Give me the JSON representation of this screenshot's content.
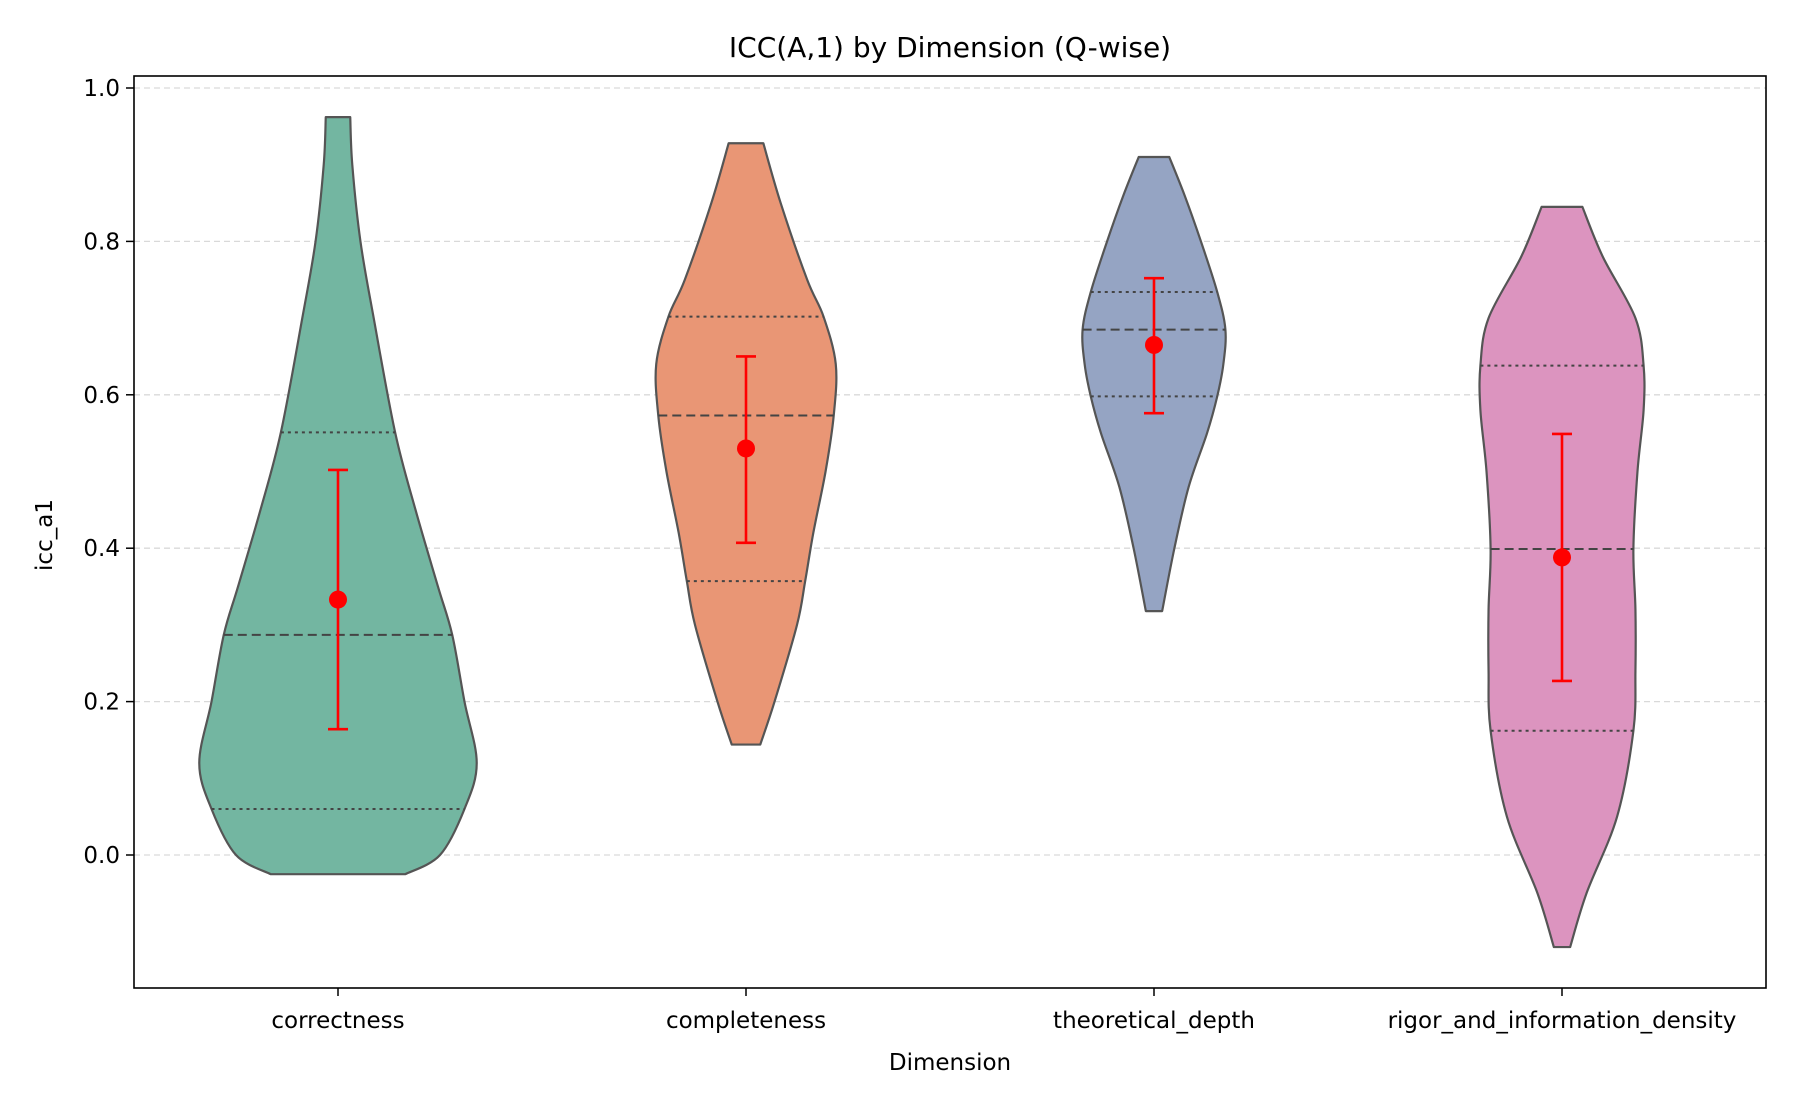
{
  "chart_data": {
    "type": "violin",
    "title": "ICC(A,1) by Dimension (Q-wise)",
    "xlabel": "Dimension",
    "ylabel": "icc_a1",
    "ylim": [
      -0.175,
      1.02
    ],
    "yticks": [
      0.0,
      0.2,
      0.4,
      0.6,
      0.8,
      1.0
    ],
    "ytick_labels": [
      "0.0",
      "0.2",
      "0.4",
      "0.6",
      "0.8",
      "1.0"
    ],
    "grid": "y, dashed",
    "categories": [
      "correctness",
      "completeness",
      "theoretical_depth",
      "rigor_and_information_density"
    ],
    "colors": [
      "#73b6a1",
      "#e99675",
      "#95a4c3",
      "#dc94bf"
    ],
    "outline_color": "#555555",
    "mean_marker_color": "#ff0000",
    "series": [
      {
        "category": "correctness",
        "color": "#73b6a1",
        "min": -0.025,
        "max": 0.962,
        "q1": 0.06,
        "median": 0.287,
        "q3": 0.551,
        "mean": 0.333,
        "ci": [
          0.164,
          0.502
        ],
        "density": [
          [
            -0.025,
            0.33
          ],
          [
            0.0,
            0.5
          ],
          [
            0.06,
            0.62
          ],
          [
            0.12,
            0.68
          ],
          [
            0.2,
            0.62
          ],
          [
            0.287,
            0.56
          ],
          [
            0.35,
            0.49
          ],
          [
            0.45,
            0.38
          ],
          [
            0.551,
            0.28
          ],
          [
            0.7,
            0.175
          ],
          [
            0.8,
            0.11
          ],
          [
            0.9,
            0.07
          ],
          [
            0.962,
            0.06
          ]
        ]
      },
      {
        "category": "completeness",
        "color": "#e99675",
        "min": 0.144,
        "max": 0.928,
        "q1": 0.357,
        "median": 0.573,
        "q3": 0.702,
        "mean": 0.53,
        "ci": [
          0.407,
          0.65
        ],
        "density": [
          [
            0.144,
            0.07
          ],
          [
            0.2,
            0.14
          ],
          [
            0.3,
            0.25
          ],
          [
            0.357,
            0.29
          ],
          [
            0.42,
            0.33
          ],
          [
            0.5,
            0.39
          ],
          [
            0.573,
            0.43
          ],
          [
            0.64,
            0.44
          ],
          [
            0.702,
            0.38
          ],
          [
            0.75,
            0.3
          ],
          [
            0.85,
            0.17
          ],
          [
            0.928,
            0.085
          ]
        ]
      },
      {
        "category": "theoretical_depth",
        "color": "#95a4c3",
        "min": 0.318,
        "max": 0.91,
        "q1": 0.598,
        "median": 0.685,
        "q3": 0.734,
        "mean": 0.665,
        "ci": [
          0.576,
          0.752
        ],
        "density": [
          [
            0.318,
            0.04
          ],
          [
            0.4,
            0.1
          ],
          [
            0.48,
            0.17
          ],
          [
            0.55,
            0.26
          ],
          [
            0.598,
            0.31
          ],
          [
            0.64,
            0.34
          ],
          [
            0.685,
            0.35
          ],
          [
            0.734,
            0.31
          ],
          [
            0.8,
            0.23
          ],
          [
            0.86,
            0.15
          ],
          [
            0.91,
            0.075
          ]
        ]
      },
      {
        "category": "rigor_and_information_density",
        "color": "#dc94bf",
        "min": -0.12,
        "max": 0.845,
        "q1": 0.162,
        "median": 0.399,
        "q3": 0.638,
        "mean": 0.388,
        "ci": [
          0.227,
          0.549
        ],
        "density": [
          [
            -0.12,
            0.04
          ],
          [
            -0.05,
            0.12
          ],
          [
            0.05,
            0.27
          ],
          [
            0.162,
            0.35
          ],
          [
            0.24,
            0.36
          ],
          [
            0.32,
            0.36
          ],
          [
            0.399,
            0.35
          ],
          [
            0.5,
            0.37
          ],
          [
            0.58,
            0.4
          ],
          [
            0.638,
            0.4
          ],
          [
            0.7,
            0.36
          ],
          [
            0.78,
            0.2
          ],
          [
            0.845,
            0.1
          ]
        ]
      }
    ]
  }
}
